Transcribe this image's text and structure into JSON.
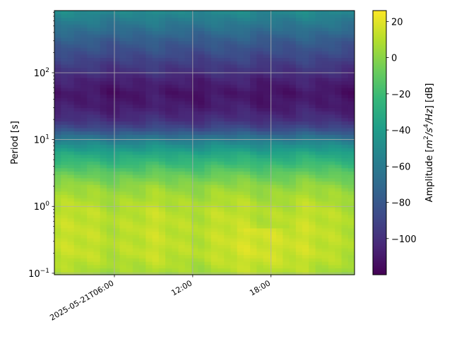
{
  "chart_data": {
    "type": "heatmap",
    "title": "",
    "x": {
      "ticks": [
        "2025-05-21T06:00",
        "12:00",
        "18:00"
      ],
      "tick_hours": [
        6,
        12,
        18
      ],
      "range_hours": [
        1.4,
        24.4
      ]
    },
    "y": {
      "label": "Period [s]",
      "scale": "log",
      "range": [
        0.095,
        850
      ],
      "ticks": [
        {
          "value": 0.1,
          "base": "10",
          "exp": "−1"
        },
        {
          "value": 1,
          "base": "10",
          "exp": "0"
        },
        {
          "value": 10,
          "base": "10",
          "exp": "1"
        },
        {
          "value": 100,
          "base": "10",
          "exp": "2"
        }
      ]
    },
    "colorbar": {
      "label": "Amplitude [m²/s⁴/Hz] [dB]",
      "label_parts": [
        "Amplitude [",
        "m",
        "2",
        "/s",
        "4",
        "/Hz",
        "] [dB]"
      ],
      "min": -120,
      "max": 26,
      "ticks": [
        20,
        0,
        -20,
        -40,
        -60,
        -80,
        -100
      ],
      "tick_labels": [
        "20",
        "0",
        "−20",
        "−40",
        "−60",
        "−80",
        "−100"
      ],
      "colormap": "viridis"
    },
    "grid": true,
    "amplitude_profile": {
      "periods": [
        0.095,
        0.12,
        0.15,
        0.2,
        0.3,
        0.5,
        0.8,
        1.0,
        1.5,
        2.0,
        3.0,
        4.0,
        6.0,
        8.0,
        10,
        12,
        15,
        20,
        30,
        50,
        80,
        100,
        150,
        200,
        300,
        500,
        850
      ],
      "db": [
        5,
        8,
        10,
        12,
        12,
        12,
        11,
        10,
        6,
        2,
        -8,
        -18,
        -32,
        -46,
        -58,
        -72,
        -88,
        -100,
        -108,
        -112,
        -106,
        -100,
        -92,
        -86,
        -78,
        -64,
        -50
      ]
    }
  }
}
